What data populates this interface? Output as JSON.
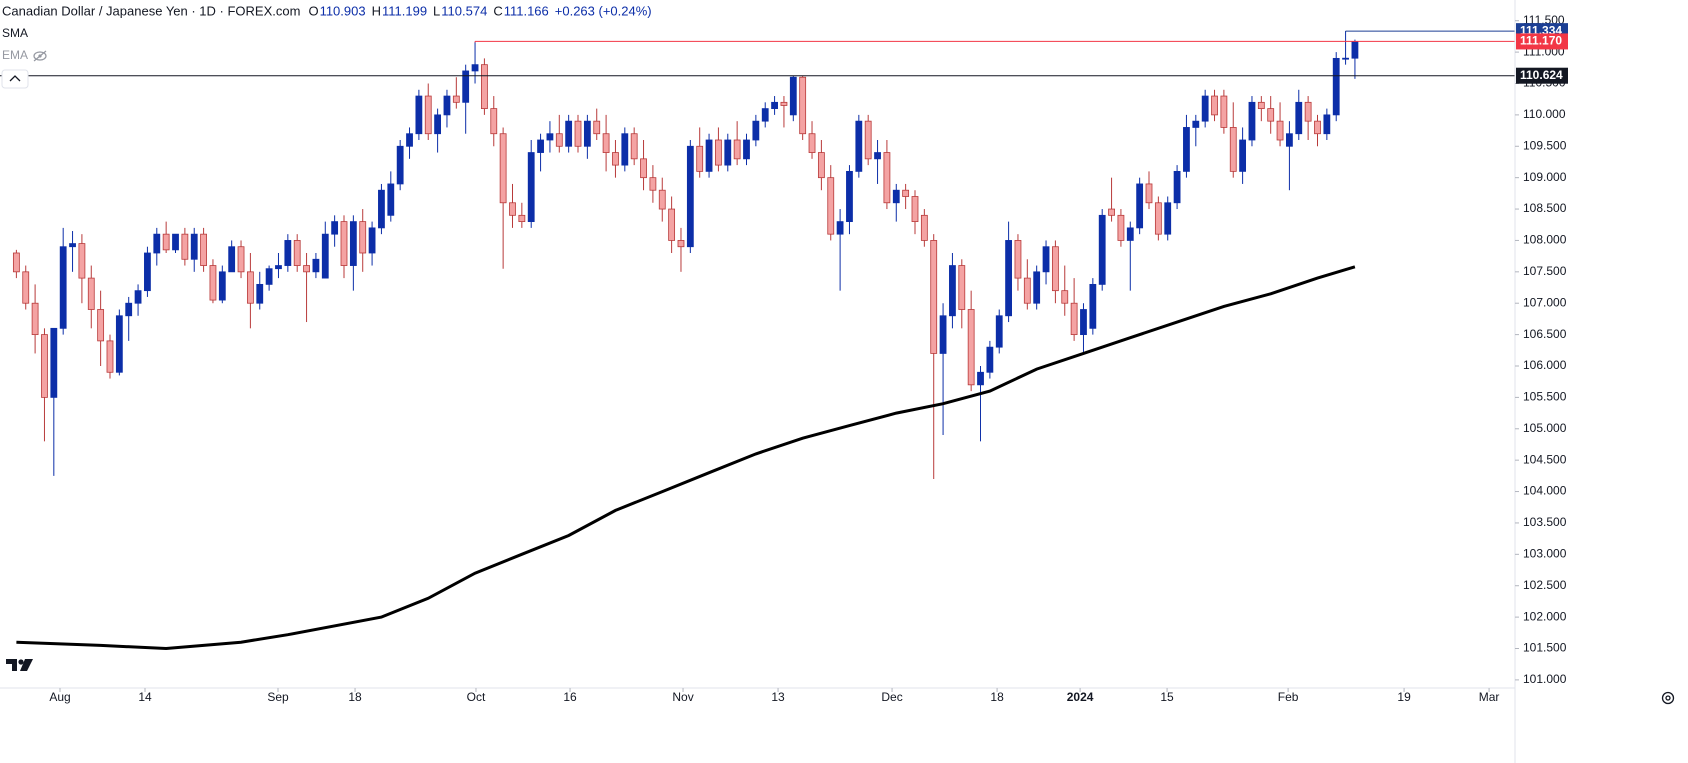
{
  "chart_data": {
    "type": "candlestick",
    "title": "Canadian Dollar / Japanese Yen · 1D · FOREX.com",
    "ohlc_header": [
      {
        "key": "O",
        "value": 110.903
      },
      {
        "key": "H",
        "value": 111.199
      },
      {
        "key": "L",
        "value": 110.574
      },
      {
        "key": "C",
        "value": 111.166
      }
    ],
    "change": "+0.263 (+0.24%)",
    "indicators": [
      "SMA",
      "EMA"
    ],
    "up_color": "#0c2ea8",
    "down_color": "#f4a3a3",
    "down_edge": "#b83a3a",
    "candles": [
      [
        107.8,
        107.85,
        107.4,
        107.5
      ],
      [
        107.5,
        107.6,
        106.9,
        107.0
      ],
      [
        107.0,
        107.3,
        106.2,
        106.5
      ],
      [
        106.5,
        106.6,
        104.8,
        105.5
      ],
      [
        105.5,
        106.6,
        104.25,
        106.6
      ],
      [
        106.6,
        108.2,
        106.5,
        107.9
      ],
      [
        107.9,
        108.15,
        107.5,
        107.95
      ],
      [
        107.95,
        108.1,
        107.0,
        107.4
      ],
      [
        107.4,
        107.6,
        106.6,
        106.9
      ],
      [
        106.9,
        107.2,
        106.0,
        106.4
      ],
      [
        106.4,
        106.5,
        105.8,
        105.9
      ],
      [
        105.9,
        106.9,
        105.85,
        106.8
      ],
      [
        106.8,
        107.1,
        106.4,
        107.0
      ],
      [
        107.0,
        107.3,
        106.8,
        107.2
      ],
      [
        107.2,
        107.9,
        107.1,
        107.8
      ],
      [
        107.8,
        108.2,
        107.6,
        108.1
      ],
      [
        108.1,
        108.3,
        107.8,
        107.85
      ],
      [
        107.85,
        108.1,
        107.8,
        108.1
      ],
      [
        108.1,
        108.2,
        107.6,
        107.7
      ],
      [
        107.7,
        108.2,
        107.5,
        108.1
      ],
      [
        108.1,
        108.2,
        107.5,
        107.6
      ],
      [
        107.6,
        107.7,
        107.0,
        107.05
      ],
      [
        107.05,
        107.6,
        107.0,
        107.5
      ],
      [
        107.5,
        108.0,
        107.5,
        107.9
      ],
      [
        107.9,
        108.0,
        107.4,
        107.5
      ],
      [
        107.5,
        107.8,
        106.6,
        107.0
      ],
      [
        107.0,
        107.5,
        106.9,
        107.3
      ],
      [
        107.3,
        107.6,
        107.2,
        107.55
      ],
      [
        107.55,
        107.8,
        107.4,
        107.6
      ],
      [
        107.6,
        108.1,
        107.5,
        108.0
      ],
      [
        108.0,
        108.1,
        107.5,
        107.6
      ],
      [
        107.6,
        107.8,
        106.7,
        107.5
      ],
      [
        107.5,
        107.8,
        107.4,
        107.7
      ],
      [
        107.4,
        108.3,
        107.4,
        108.1
      ],
      [
        108.1,
        108.4,
        107.9,
        108.3
      ],
      [
        108.3,
        108.4,
        107.4,
        107.6
      ],
      [
        107.6,
        108.4,
        107.2,
        108.3
      ],
      [
        108.3,
        108.5,
        107.5,
        107.8
      ],
      [
        107.8,
        108.3,
        107.6,
        108.2
      ],
      [
        108.2,
        108.9,
        108.1,
        108.8
      ],
      [
        108.4,
        109.1,
        108.3,
        108.9
      ],
      [
        108.9,
        109.6,
        108.8,
        109.5
      ],
      [
        109.5,
        109.8,
        109.3,
        109.7
      ],
      [
        109.7,
        110.4,
        109.6,
        110.3
      ],
      [
        110.3,
        110.5,
        109.6,
        109.7
      ],
      [
        109.7,
        110.1,
        109.4,
        110.0
      ],
      [
        110.0,
        110.4,
        109.8,
        110.3
      ],
      [
        110.3,
        110.6,
        110.1,
        110.2
      ],
      [
        110.2,
        110.8,
        109.7,
        110.7
      ],
      [
        110.7,
        111.17,
        110.5,
        110.8
      ],
      [
        110.8,
        110.9,
        110.0,
        110.1
      ],
      [
        110.1,
        110.3,
        109.5,
        109.7
      ],
      [
        109.7,
        109.8,
        107.55,
        108.6
      ],
      [
        108.6,
        108.9,
        108.2,
        108.4
      ],
      [
        108.4,
        108.6,
        108.2,
        108.3
      ],
      [
        108.3,
        109.6,
        108.2,
        109.4
      ],
      [
        109.4,
        109.7,
        109.1,
        109.6
      ],
      [
        109.6,
        109.9,
        109.4,
        109.7
      ],
      [
        109.7,
        110.0,
        109.4,
        109.5
      ],
      [
        109.5,
        110.0,
        109.4,
        109.9
      ],
      [
        109.9,
        110.0,
        109.4,
        109.5
      ],
      [
        109.5,
        110.0,
        109.3,
        109.9
      ],
      [
        109.9,
        110.1,
        109.6,
        109.7
      ],
      [
        109.7,
        110.0,
        109.1,
        109.4
      ],
      [
        109.4,
        109.6,
        109.0,
        109.2
      ],
      [
        109.2,
        109.8,
        109.1,
        109.7
      ],
      [
        109.7,
        109.8,
        109.2,
        109.3
      ],
      [
        109.3,
        109.6,
        108.8,
        109.0
      ],
      [
        109.0,
        109.2,
        108.6,
        108.8
      ],
      [
        108.8,
        109.0,
        108.3,
        108.5
      ],
      [
        108.5,
        108.7,
        107.8,
        108.0
      ],
      [
        108.0,
        108.2,
        107.5,
        107.9
      ],
      [
        107.9,
        109.6,
        107.8,
        109.5
      ],
      [
        109.5,
        109.8,
        109.0,
        109.1
      ],
      [
        109.1,
        109.7,
        109.0,
        109.6
      ],
      [
        109.6,
        109.8,
        109.1,
        109.2
      ],
      [
        109.2,
        109.7,
        109.1,
        109.6
      ],
      [
        109.6,
        109.9,
        109.2,
        109.3
      ],
      [
        109.3,
        109.7,
        109.2,
        109.6
      ],
      [
        109.6,
        110.0,
        109.5,
        109.9
      ],
      [
        109.9,
        110.2,
        109.8,
        110.1
      ],
      [
        110.1,
        110.3,
        110.0,
        110.2
      ],
      [
        110.2,
        110.3,
        109.8,
        110.15
      ],
      [
        110.0,
        110.62,
        109.9,
        110.6
      ],
      [
        110.6,
        110.62,
        109.6,
        109.7
      ],
      [
        109.7,
        109.9,
        109.3,
        109.4
      ],
      [
        109.4,
        109.6,
        108.8,
        109.0
      ],
      [
        109.0,
        109.2,
        108.0,
        108.1
      ],
      [
        108.1,
        108.5,
        107.2,
        108.3
      ],
      [
        108.3,
        109.2,
        108.1,
        109.1
      ],
      [
        109.1,
        110.0,
        109.0,
        109.9
      ],
      [
        109.9,
        110.0,
        109.2,
        109.3
      ],
      [
        109.3,
        109.6,
        108.9,
        109.4
      ],
      [
        109.4,
        109.6,
        108.5,
        108.6
      ],
      [
        108.6,
        108.9,
        108.3,
        108.8
      ],
      [
        108.8,
        108.9,
        108.5,
        108.7
      ],
      [
        108.7,
        108.8,
        108.1,
        108.3
      ],
      [
        108.4,
        108.5,
        107.9,
        108.0
      ],
      [
        108.0,
        108.1,
        104.2,
        106.2
      ],
      [
        106.2,
        107.0,
        104.9,
        106.8
      ],
      [
        106.8,
        107.8,
        106.6,
        107.6
      ],
      [
        107.6,
        107.7,
        106.6,
        106.9
      ],
      [
        106.9,
        107.2,
        105.6,
        105.7
      ],
      [
        105.7,
        106.0,
        104.8,
        105.9
      ],
      [
        105.9,
        106.4,
        105.8,
        106.3
      ],
      [
        106.3,
        106.9,
        106.2,
        106.8
      ],
      [
        106.8,
        108.3,
        106.7,
        108.0
      ],
      [
        108.0,
        108.1,
        107.2,
        107.4
      ],
      [
        107.4,
        107.7,
        106.9,
        107.0
      ],
      [
        107.0,
        107.6,
        106.9,
        107.5
      ],
      [
        107.5,
        108.0,
        107.3,
        107.9
      ],
      [
        107.9,
        108.0,
        107.0,
        107.2
      ],
      [
        107.2,
        107.6,
        106.8,
        107.0
      ],
      [
        107.0,
        107.4,
        106.4,
        106.5
      ],
      [
        106.5,
        107.0,
        106.2,
        106.9
      ],
      [
        106.6,
        107.4,
        106.5,
        107.3
      ],
      [
        107.3,
        108.5,
        107.2,
        108.4
      ],
      [
        108.5,
        109.0,
        108.3,
        108.4
      ],
      [
        108.4,
        108.5,
        107.9,
        108.0
      ],
      [
        108.0,
        108.3,
        107.2,
        108.2
      ],
      [
        108.2,
        109.0,
        108.1,
        108.9
      ],
      [
        108.9,
        109.1,
        108.5,
        108.6
      ],
      [
        108.6,
        108.7,
        108.0,
        108.1
      ],
      [
        108.1,
        108.7,
        108.0,
        108.6
      ],
      [
        108.6,
        109.2,
        108.5,
        109.1
      ],
      [
        109.1,
        110.0,
        109.0,
        109.8
      ],
      [
        109.8,
        110.0,
        109.5,
        109.9
      ],
      [
        109.9,
        110.4,
        109.8,
        110.3
      ],
      [
        110.3,
        110.4,
        109.9,
        110.0
      ],
      [
        110.3,
        110.4,
        109.7,
        109.8
      ],
      [
        109.8,
        110.2,
        109.0,
        109.1
      ],
      [
        109.1,
        109.8,
        108.9,
        109.6
      ],
      [
        109.6,
        110.3,
        109.5,
        110.2
      ],
      [
        110.2,
        110.3,
        109.9,
        110.1
      ],
      [
        110.1,
        110.3,
        109.7,
        109.9
      ],
      [
        109.9,
        110.2,
        109.5,
        109.6
      ],
      [
        109.5,
        109.9,
        108.8,
        109.7
      ],
      [
        109.7,
        110.4,
        109.6,
        110.2
      ],
      [
        110.2,
        110.3,
        109.6,
        109.9
      ],
      [
        109.9,
        110.0,
        109.5,
        109.7
      ],
      [
        109.7,
        110.1,
        109.6,
        110.0
      ],
      [
        110.0,
        111.0,
        109.9,
        110.9
      ],
      [
        110.9,
        111.334,
        110.8,
        110.903
      ],
      [
        110.903,
        111.199,
        110.574,
        111.166
      ]
    ],
    "ema": {
      "color": "#000000",
      "x": [
        0,
        9,
        16,
        24,
        29,
        39,
        44,
        49,
        54,
        59,
        64,
        69,
        74,
        79,
        84,
        89,
        94,
        99,
        104,
        109,
        114,
        119,
        124,
        129,
        134,
        139,
        143
      ],
      "values": [
        101.6,
        101.55,
        101.5,
        101.6,
        101.72,
        102.0,
        102.3,
        102.7,
        103.0,
        103.3,
        103.7,
        104.0,
        104.3,
        104.6,
        104.85,
        105.05,
        105.25,
        105.4,
        105.6,
        105.95,
        106.2,
        106.45,
        106.7,
        106.95,
        107.15,
        107.4,
        107.58
      ]
    },
    "levels": [
      {
        "price": 111.334,
        "color": "#1c3f94"
      },
      {
        "price": {
          "value": 111.17,
          "label": "111.170"
        },
        "color": "#f23645"
      },
      {
        "price": 110.624,
        "color": "#131722"
      }
    ],
    "xlim": [
      -1.75,
      160.1
    ],
    "ylim": [
      100.6,
      111.83
    ],
    "yticks": [
      {
        "value": 101,
        "label": "101.000"
      },
      {
        "value": 101.5,
        "label": "101.500"
      },
      {
        "value": 102,
        "label": "102.000"
      },
      {
        "value": 102.5,
        "label": "102.500"
      },
      {
        "value": 103,
        "label": "103.000"
      },
      {
        "value": 103.5,
        "label": "103.500"
      },
      {
        "value": 104,
        "label": "104.000"
      },
      {
        "value": 104.5,
        "label": "104.500"
      },
      {
        "value": 105,
        "label": "105.000"
      },
      {
        "value": 105.5,
        "label": "105.500"
      },
      {
        "value": 106,
        "label": "106.000"
      },
      {
        "value": 106.5,
        "label": "106.500"
      },
      {
        "value": 107,
        "label": "107.000"
      },
      {
        "value": 107.5,
        "label": "107.500"
      },
      {
        "value": 108,
        "label": "108.000"
      },
      {
        "value": 108.5,
        "label": "108.500"
      },
      {
        "value": 109,
        "label": "109.000"
      },
      {
        "value": 109.5,
        "label": "109.500"
      },
      {
        "value": 110,
        "label": "110.000"
      },
      {
        "value": 110.5,
        "label": "110.500"
      },
      {
        "value": 111,
        "label": "111.000"
      },
      {
        "value": 111.5,
        "label": "111.500"
      }
    ],
    "xticks": [
      {
        "value": 4.66,
        "label": "Aug"
      },
      {
        "value": 13.74,
        "label": "14"
      },
      {
        "value": 27.95,
        "label": "Sep"
      },
      {
        "value": 36.18,
        "label": "18"
      },
      {
        "value": 49.1,
        "label": "Oct"
      },
      {
        "value": 59.15,
        "label": "16"
      },
      {
        "value": 71.22,
        "label": "Nov"
      },
      {
        "value": 81.37,
        "label": "13"
      },
      {
        "value": 93.55,
        "label": "Dec"
      },
      {
        "value": 104.77,
        "label": "18"
      },
      {
        "value": 113.64,
        "label": "2024"
      },
      {
        "value": 122.93,
        "label": "15"
      },
      {
        "value": 135.86,
        "label": "Feb"
      },
      {
        "value": 148.25,
        "label": "19"
      },
      {
        "value": 157.33,
        "label": "Mar"
      }
    ]
  }
}
